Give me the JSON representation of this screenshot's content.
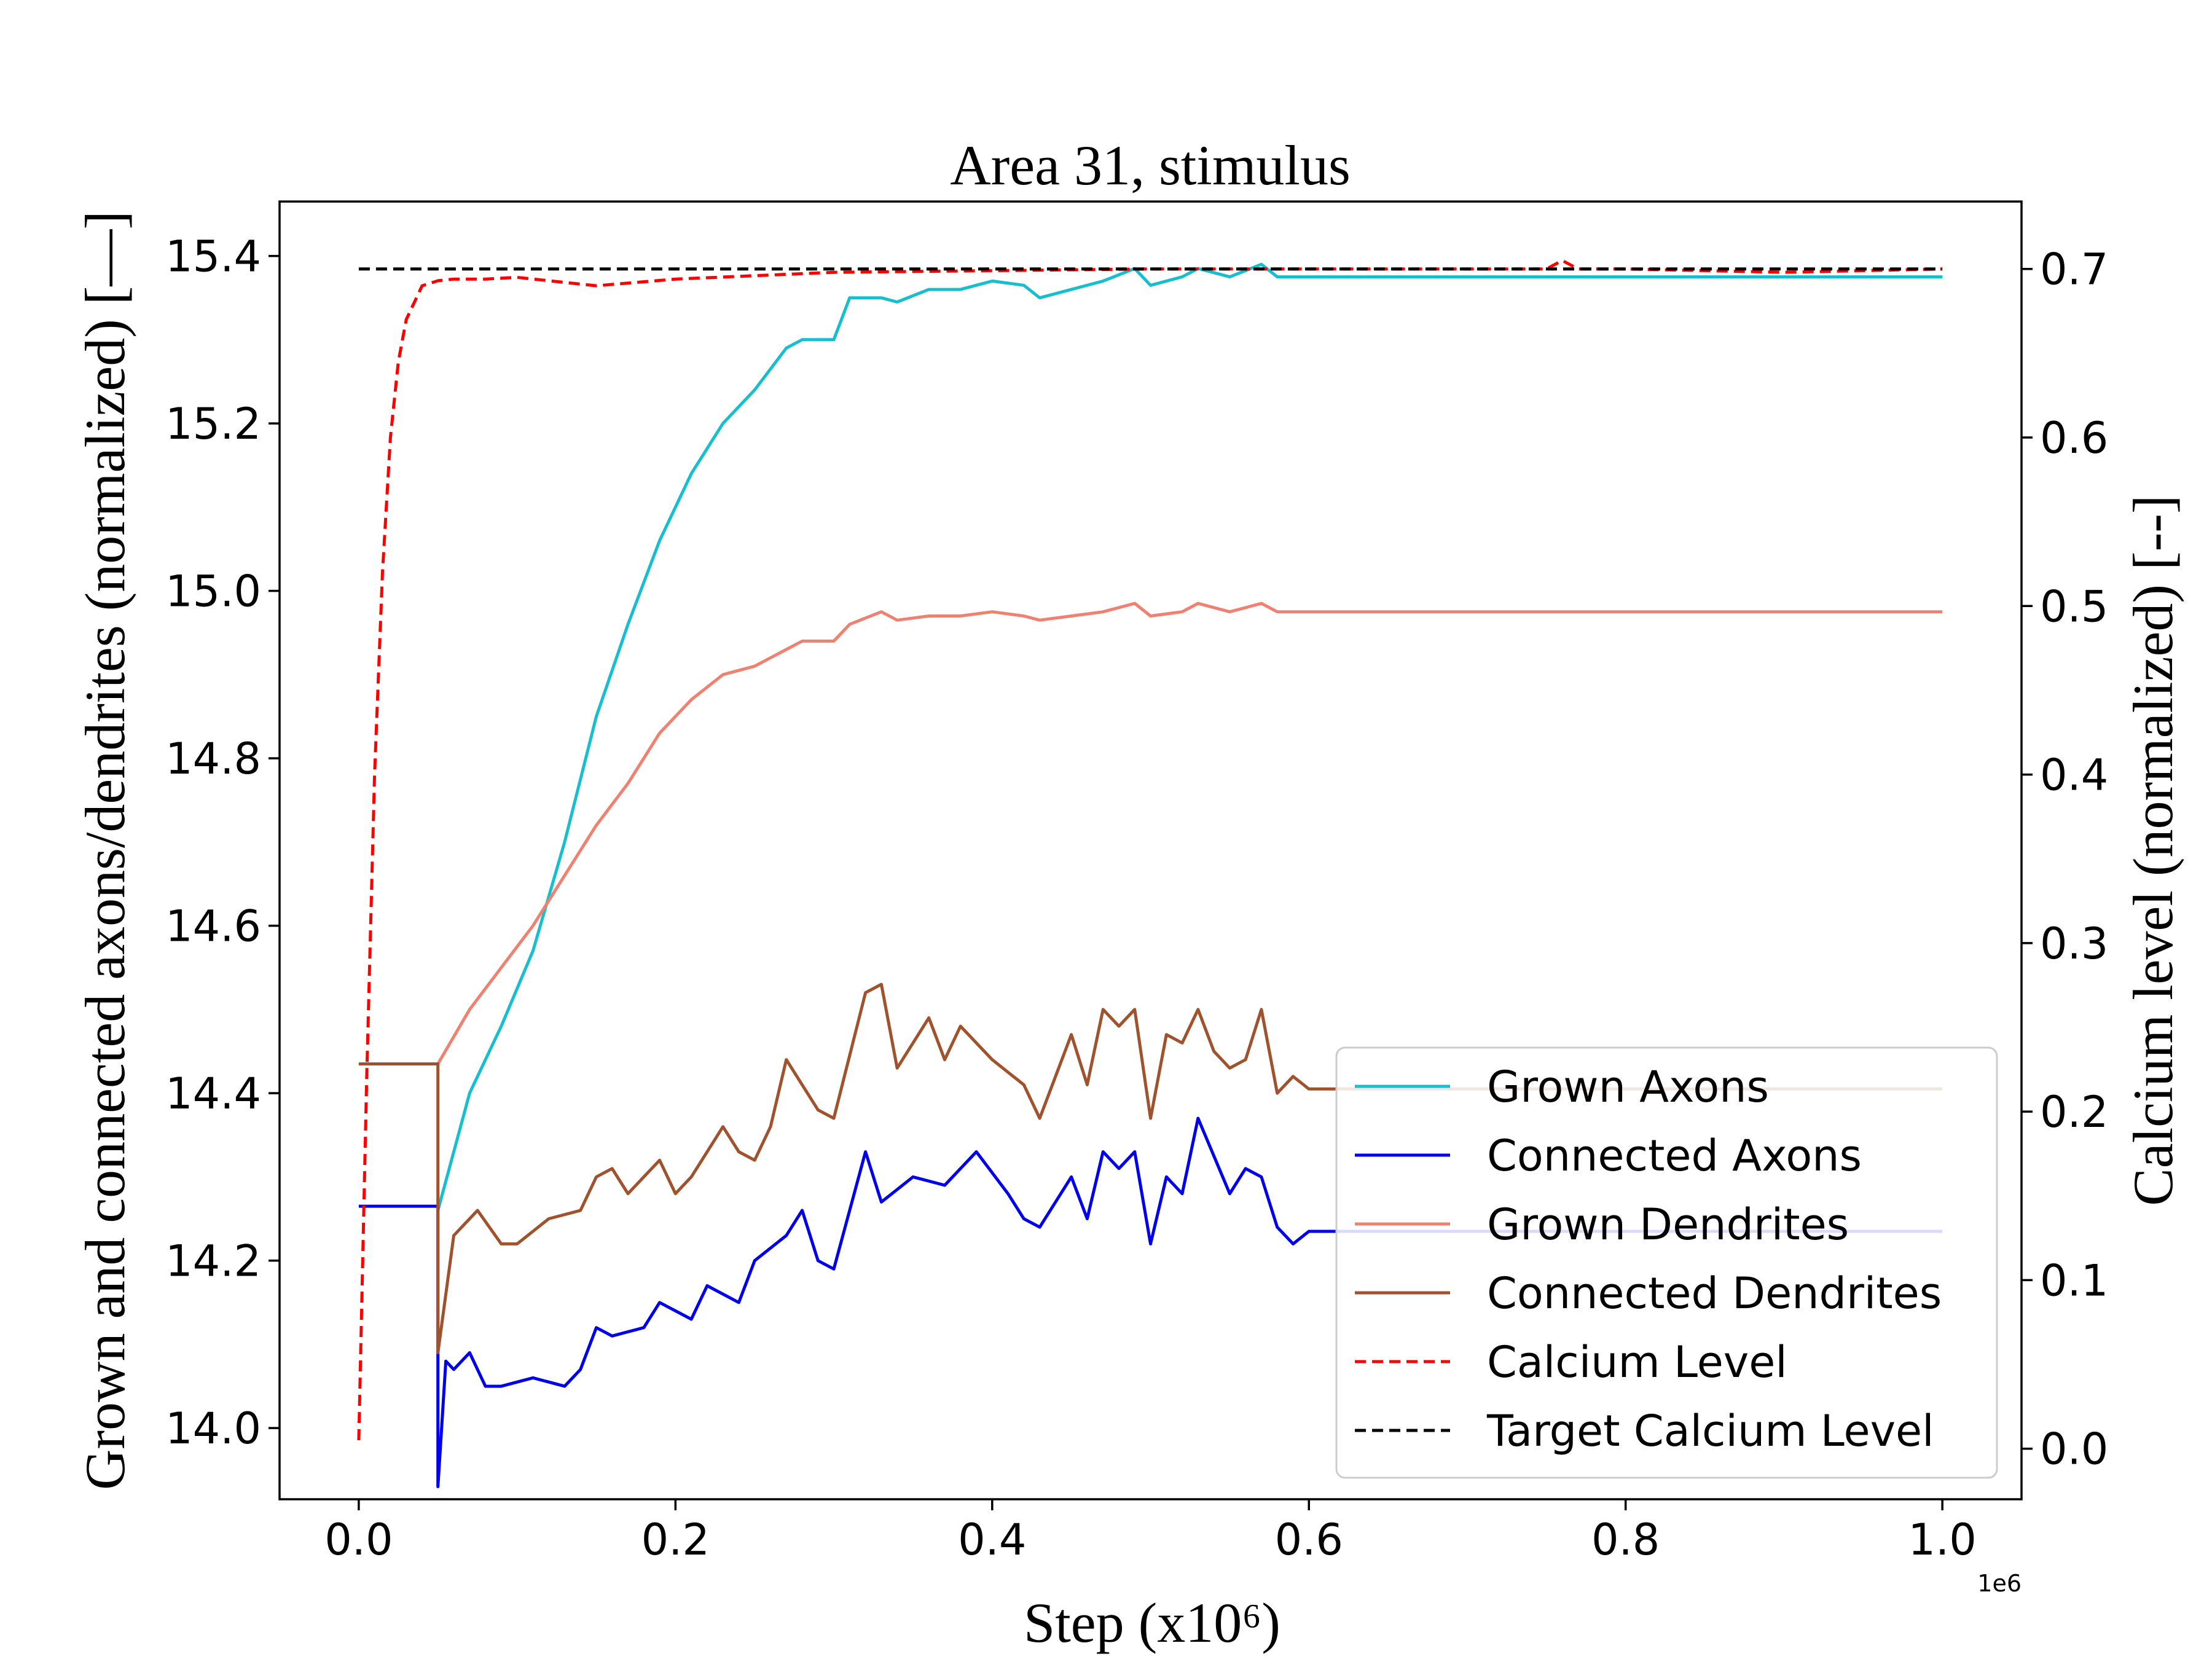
{
  "chart_data": {
    "type": "line",
    "title": "Area 31, stimulus",
    "xlabel": "Step",
    "xlabel_unit": "(x10⁶)",
    "x_offset_text": "1e6",
    "ylabel_left": "Grown and connected axons/dendrites (normalized) [—]",
    "ylabel_right": "Calcium level (normalized) [--]",
    "xlim": [
      -0.05,
      1.05
    ],
    "ylim_left": [
      13.915,
      15.465
    ],
    "ylim_right": [
      -0.03,
      0.74
    ],
    "xticks": [
      0.0,
      0.2,
      0.4,
      0.6,
      0.8,
      1.0
    ],
    "xtick_labels": [
      "0.0",
      "0.2",
      "0.4",
      "0.6",
      "0.8",
      "1.0"
    ],
    "yticks_left": [
      14.0,
      14.2,
      14.4,
      14.6,
      14.8,
      15.0,
      15.2,
      15.4
    ],
    "ytick_labels_left": [
      "14.0",
      "14.2",
      "14.4",
      "14.6",
      "14.8",
      "15.0",
      "15.2",
      "15.4"
    ],
    "yticks_right": [
      0.0,
      0.1,
      0.2,
      0.3,
      0.4,
      0.5,
      0.6,
      0.7
    ],
    "ytick_labels_right": [
      "0.0",
      "0.1",
      "0.2",
      "0.3",
      "0.4",
      "0.5",
      "0.6",
      "0.7"
    ],
    "grid": false,
    "legend_position": "lower-right",
    "series": [
      {
        "name": "Grown Axons",
        "axis": "left",
        "color": "#17becf",
        "dash": "solid",
        "x": [
          0.05,
          0.07,
          0.09,
          0.11,
          0.13,
          0.15,
          0.17,
          0.19,
          0.21,
          0.23,
          0.25,
          0.27,
          0.28,
          0.3,
          0.31,
          0.33,
          0.34,
          0.36,
          0.38,
          0.4,
          0.42,
          0.43,
          0.45,
          0.47,
          0.49,
          0.5,
          0.52,
          0.53,
          0.55,
          0.57,
          0.58,
          0.6,
          0.8,
          0.9,
          1.0
        ],
        "y": [
          14.26,
          14.4,
          14.48,
          14.57,
          14.7,
          14.85,
          14.96,
          15.06,
          15.14,
          15.2,
          15.24,
          15.29,
          15.3,
          15.3,
          15.35,
          15.35,
          15.345,
          15.36,
          15.36,
          15.37,
          15.365,
          15.35,
          15.36,
          15.37,
          15.385,
          15.365,
          15.375,
          15.385,
          15.375,
          15.39,
          15.375,
          15.375,
          15.375,
          15.375,
          15.375
        ]
      },
      {
        "name": "Connected Axons",
        "axis": "left",
        "color": "#0000ee",
        "dash": "solid",
        "x": [
          0.0,
          0.05,
          0.05,
          0.055,
          0.06,
          0.07,
          0.08,
          0.09,
          0.11,
          0.13,
          0.14,
          0.15,
          0.16,
          0.18,
          0.19,
          0.21,
          0.22,
          0.24,
          0.25,
          0.27,
          0.28,
          0.29,
          0.3,
          0.31,
          0.32,
          0.33,
          0.35,
          0.37,
          0.39,
          0.41,
          0.42,
          0.43,
          0.45,
          0.46,
          0.47,
          0.48,
          0.49,
          0.5,
          0.51,
          0.52,
          0.53,
          0.55,
          0.56,
          0.57,
          0.58,
          0.59,
          0.6,
          0.7,
          0.8,
          0.9,
          1.0
        ],
        "y": [
          14.265,
          14.265,
          13.93,
          14.08,
          14.07,
          14.09,
          14.05,
          14.05,
          14.06,
          14.05,
          14.07,
          14.12,
          14.11,
          14.12,
          14.15,
          14.13,
          14.17,
          14.15,
          14.2,
          14.23,
          14.26,
          14.2,
          14.19,
          14.26,
          14.33,
          14.27,
          14.3,
          14.29,
          14.33,
          14.28,
          14.25,
          14.24,
          14.3,
          14.25,
          14.33,
          14.31,
          14.33,
          14.22,
          14.3,
          14.28,
          14.37,
          14.28,
          14.31,
          14.3,
          14.24,
          14.22,
          14.235,
          14.235,
          14.235,
          14.235,
          14.235
        ]
      },
      {
        "name": "Grown Dendrites",
        "axis": "left",
        "color": "#f08070",
        "dash": "solid",
        "x": [
          0.0,
          0.05,
          0.07,
          0.09,
          0.11,
          0.13,
          0.15,
          0.17,
          0.19,
          0.21,
          0.23,
          0.25,
          0.27,
          0.28,
          0.3,
          0.31,
          0.33,
          0.34,
          0.36,
          0.38,
          0.4,
          0.42,
          0.43,
          0.45,
          0.47,
          0.49,
          0.5,
          0.52,
          0.53,
          0.55,
          0.56,
          0.57,
          0.58,
          0.6,
          0.8,
          1.0
        ],
        "y": [
          14.435,
          14.435,
          14.5,
          14.55,
          14.6,
          14.66,
          14.72,
          14.77,
          14.83,
          14.87,
          14.9,
          14.91,
          14.93,
          14.94,
          14.94,
          14.96,
          14.975,
          14.965,
          14.97,
          14.97,
          14.975,
          14.97,
          14.965,
          14.97,
          14.975,
          14.985,
          14.97,
          14.975,
          14.985,
          14.975,
          14.98,
          14.985,
          14.975,
          14.975,
          14.975,
          14.975
        ]
      },
      {
        "name": "Connected Dendrites",
        "axis": "left",
        "color": "#a0522d",
        "dash": "solid",
        "x": [
          0.0,
          0.05,
          0.05,
          0.06,
          0.075,
          0.09,
          0.1,
          0.12,
          0.14,
          0.15,
          0.16,
          0.17,
          0.19,
          0.2,
          0.21,
          0.23,
          0.24,
          0.25,
          0.26,
          0.27,
          0.29,
          0.3,
          0.32,
          0.33,
          0.34,
          0.35,
          0.36,
          0.37,
          0.38,
          0.4,
          0.42,
          0.43,
          0.45,
          0.46,
          0.47,
          0.48,
          0.49,
          0.5,
          0.51,
          0.52,
          0.53,
          0.54,
          0.55,
          0.56,
          0.57,
          0.58,
          0.59,
          0.6,
          0.7,
          0.8,
          0.9,
          1.0
        ],
        "y": [
          14.435,
          14.435,
          14.09,
          14.23,
          14.26,
          14.22,
          14.22,
          14.25,
          14.26,
          14.3,
          14.31,
          14.28,
          14.32,
          14.28,
          14.3,
          14.36,
          14.33,
          14.32,
          14.36,
          14.44,
          14.38,
          14.37,
          14.52,
          14.53,
          14.43,
          14.46,
          14.49,
          14.44,
          14.48,
          14.44,
          14.41,
          14.37,
          14.47,
          14.41,
          14.5,
          14.48,
          14.5,
          14.37,
          14.47,
          14.46,
          14.5,
          14.45,
          14.43,
          14.44,
          14.5,
          14.4,
          14.42,
          14.405,
          14.405,
          14.405,
          14.405,
          14.405
        ]
      },
      {
        "name": "Calcium Level",
        "axis": "right",
        "color": "#ff0000",
        "dash": "dashed",
        "x": [
          0.0,
          0.005,
          0.01,
          0.015,
          0.02,
          0.025,
          0.03,
          0.04,
          0.05,
          0.06,
          0.08,
          0.1,
          0.15,
          0.2,
          0.25,
          0.3,
          0.4,
          0.5,
          0.6,
          0.7,
          0.75,
          0.76,
          0.77,
          0.8,
          0.9,
          1.0
        ],
        "y": [
          0.005,
          0.22,
          0.4,
          0.52,
          0.6,
          0.645,
          0.67,
          0.69,
          0.693,
          0.694,
          0.694,
          0.695,
          0.69,
          0.694,
          0.696,
          0.698,
          0.699,
          0.7,
          0.7,
          0.7,
          0.7,
          0.705,
          0.7,
          0.7,
          0.698,
          0.7
        ]
      },
      {
        "name": "Target Calcium Level",
        "axis": "right",
        "color": "#000000",
        "dash": "dashed",
        "x": [
          0.0,
          1.0
        ],
        "y": [
          0.7,
          0.7
        ]
      }
    ]
  }
}
